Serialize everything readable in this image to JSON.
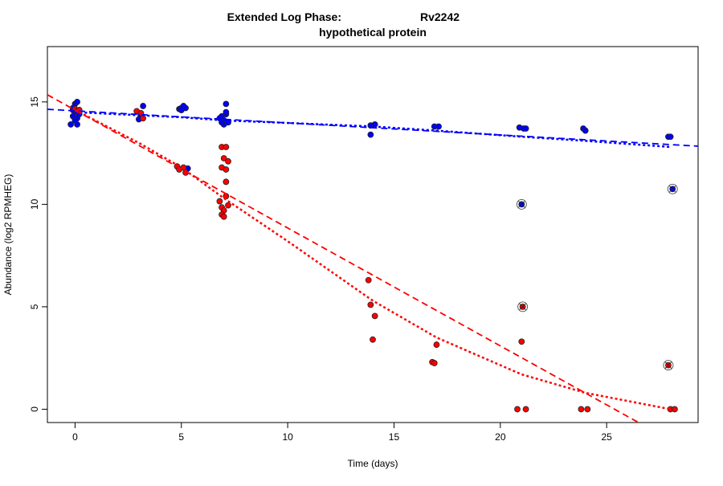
{
  "chart_data": {
    "type": "scatter",
    "title_line1_left": "Extended Log Phase:",
    "title_line1_right": "Rv2242",
    "title_line2": "hypothetical protein",
    "xlabel": "Time  (days)",
    "ylabel": "Abundance  (log2 RPMHEG)",
    "xlim": [
      -1.3,
      29.3
    ],
    "ylim": [
      -0.65,
      17.7
    ],
    "xticks": [
      0,
      5,
      10,
      15,
      20,
      25
    ],
    "yticks": [
      0,
      5,
      10,
      15
    ],
    "grid": false,
    "colors": {
      "blue": "#0000ff",
      "red": "#ff0000"
    },
    "series": [
      {
        "color": "#0000ff",
        "points": [
          [
            0,
            14.9
          ],
          [
            0.1,
            15.0
          ],
          [
            -0.1,
            14.7
          ],
          [
            0,
            14.5
          ],
          [
            0.2,
            14.4
          ],
          [
            -0.1,
            14.3
          ],
          [
            0.1,
            14.2
          ],
          [
            0,
            14.1
          ],
          [
            -0.2,
            13.9
          ],
          [
            0.1,
            13.9
          ],
          [
            0.2,
            14.6
          ],
          [
            -0.1,
            14.6
          ],
          [
            3.2,
            14.8
          ],
          [
            3.1,
            14.3
          ],
          [
            3.0,
            14.15
          ],
          [
            4.9,
            14.65
          ],
          [
            5.0,
            14.7
          ],
          [
            5.1,
            14.8
          ],
          [
            5.2,
            14.7
          ],
          [
            5.0,
            14.6
          ],
          [
            5.3,
            11.75
          ],
          [
            6.9,
            14.3
          ],
          [
            7.0,
            14.1
          ],
          [
            7.1,
            14.4
          ],
          [
            7.0,
            13.9
          ],
          [
            6.8,
            14.2
          ],
          [
            7.2,
            14.0
          ],
          [
            7.1,
            14.9
          ],
          [
            7.1,
            14.5
          ],
          [
            6.9,
            14.0
          ],
          [
            13.9,
            13.85
          ],
          [
            14.1,
            13.9
          ],
          [
            13.9,
            13.4
          ],
          [
            16.9,
            13.8
          ],
          [
            17.1,
            13.8
          ],
          [
            20.9,
            13.75
          ],
          [
            21.1,
            13.7
          ],
          [
            21.2,
            13.7
          ],
          [
            23.9,
            13.7
          ],
          [
            24.0,
            13.6
          ],
          [
            27.9,
            13.3
          ],
          [
            28.0,
            13.3
          ]
        ],
        "circled": [
          [
            21.0,
            10.0
          ],
          [
            28.1,
            10.75
          ]
        ]
      },
      {
        "color": "#ff0000",
        "points": [
          [
            0,
            14.65
          ],
          [
            0.1,
            14.55
          ],
          [
            0.2,
            14.6
          ],
          [
            2.9,
            14.55
          ],
          [
            3.1,
            14.45
          ],
          [
            3.2,
            14.2
          ],
          [
            4.8,
            11.85
          ],
          [
            4.9,
            11.7
          ],
          [
            5.1,
            11.8
          ],
          [
            5.2,
            11.55
          ],
          [
            6.9,
            12.8
          ],
          [
            7.1,
            12.8
          ],
          [
            7.0,
            12.25
          ],
          [
            7.2,
            12.1
          ],
          [
            6.9,
            11.8
          ],
          [
            7.1,
            11.7
          ],
          [
            7.1,
            11.1
          ],
          [
            7.1,
            10.4
          ],
          [
            6.8,
            10.15
          ],
          [
            7.2,
            9.95
          ],
          [
            6.9,
            9.85
          ],
          [
            7.0,
            9.7
          ],
          [
            6.9,
            9.5
          ],
          [
            7.0,
            9.4
          ],
          [
            13.8,
            6.3
          ],
          [
            13.9,
            5.1
          ],
          [
            14.1,
            4.55
          ],
          [
            14.0,
            3.4
          ],
          [
            17.0,
            3.15
          ],
          [
            16.8,
            2.3
          ],
          [
            16.9,
            2.25
          ],
          [
            21.0,
            3.3
          ],
          [
            20.8,
            0
          ],
          [
            21.2,
            0
          ],
          [
            23.8,
            0
          ],
          [
            24.1,
            0
          ],
          [
            28.0,
            0
          ],
          [
            28.2,
            0
          ]
        ],
        "circled": [
          [
            21.05,
            5.0
          ],
          [
            27.9,
            2.15
          ]
        ]
      }
    ],
    "fit_lines": [
      {
        "color": "#0000ff",
        "style": "dashed",
        "x": [
          -1.3,
          29.3
        ],
        "y": [
          14.64,
          12.84
        ]
      },
      {
        "color": "#0000ff",
        "style": "dotted",
        "x": [
          0,
          3,
          5,
          7,
          14,
          17,
          21,
          24,
          28
        ],
        "y": [
          14.5,
          14.35,
          14.25,
          14.1,
          13.8,
          13.6,
          13.3,
          13.1,
          12.8
        ]
      },
      {
        "color": "#ff0000",
        "style": "dashed",
        "x": [
          -1.3,
          26.5
        ],
        "y": [
          15.35,
          -0.65
        ]
      },
      {
        "color": "#ff0000",
        "style": "dotted",
        "x": [
          0,
          3,
          5,
          7,
          10,
          14,
          17,
          21,
          24,
          28
        ],
        "y": [
          14.6,
          13.0,
          11.8,
          10.3,
          8.2,
          5.3,
          3.5,
          1.7,
          0.8,
          0
        ]
      }
    ]
  }
}
